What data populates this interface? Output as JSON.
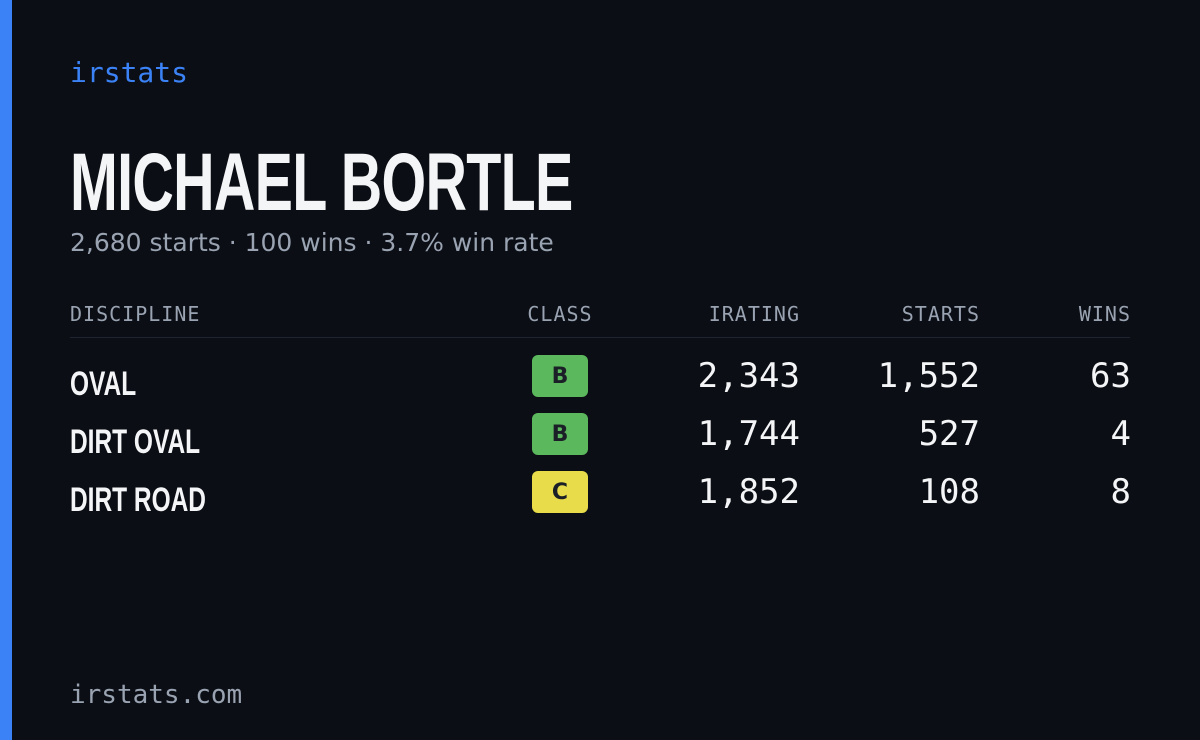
{
  "brand": "irstats",
  "driver": {
    "name": "MICHAEL BORTLE",
    "summary": "2,680 starts · 100 wins · 3.7% win rate"
  },
  "table": {
    "headers": [
      "DISCIPLINE",
      "CLASS",
      "IRATING",
      "STARTS",
      "WINS"
    ],
    "rows": [
      {
        "discipline": "OVAL",
        "class": "B",
        "class_color": "#5cb85c",
        "irating": "2,343",
        "starts": "1,552",
        "wins": "63"
      },
      {
        "discipline": "DIRT OVAL",
        "class": "B",
        "class_color": "#5cb85c",
        "irating": "1,744",
        "starts": "527",
        "wins": "4"
      },
      {
        "discipline": "DIRT ROAD",
        "class": "C",
        "class_color": "#e8dc4a",
        "irating": "1,852",
        "starts": "108",
        "wins": "8"
      }
    ]
  },
  "footer": "irstats.com"
}
